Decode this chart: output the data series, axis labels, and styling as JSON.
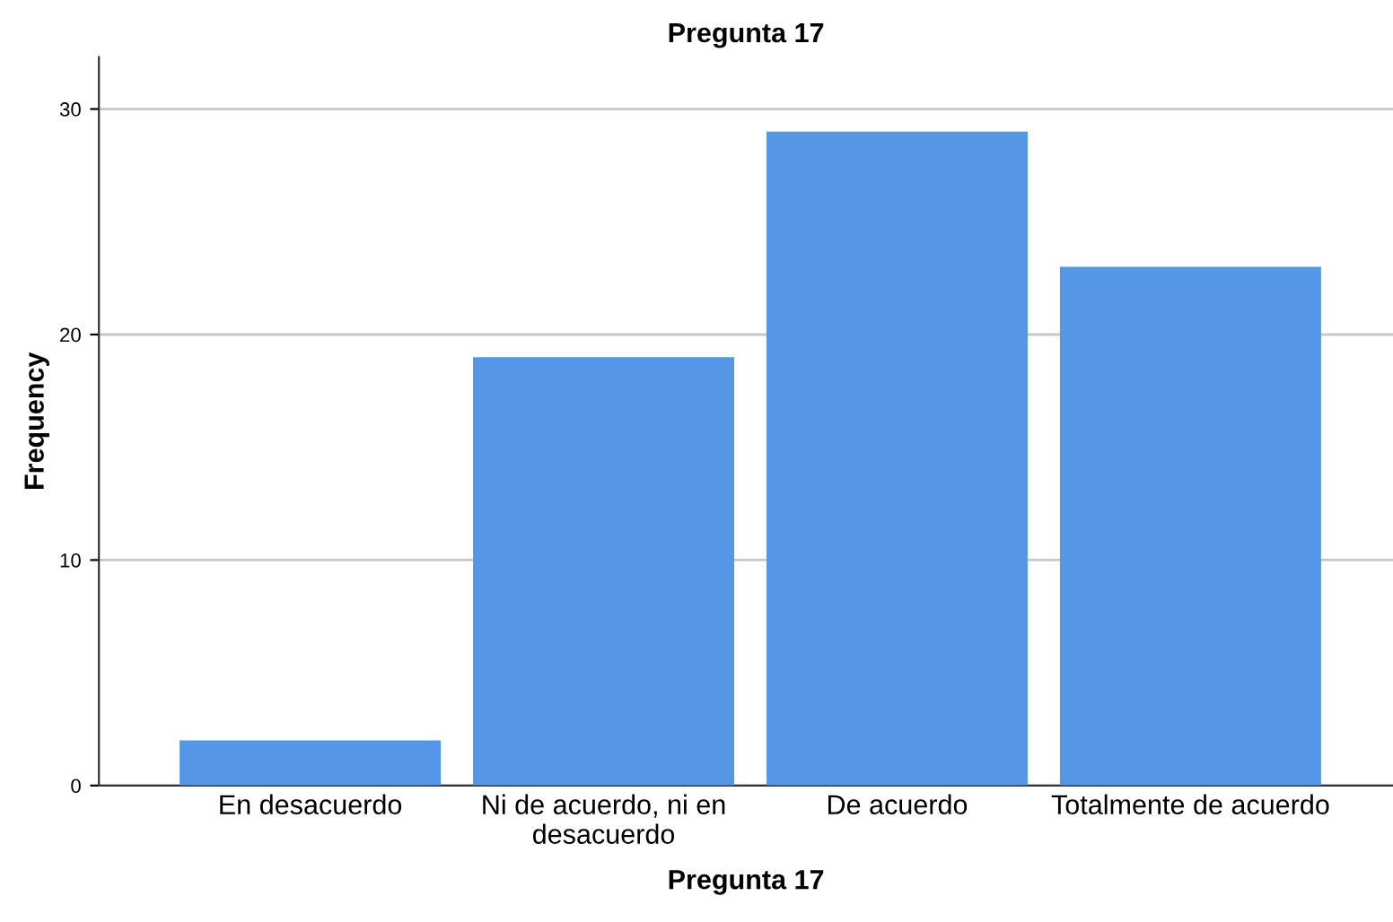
{
  "chart_data": {
    "type": "bar",
    "title": "Pregunta 17",
    "xlabel": "Pregunta 17",
    "ylabel": "Frequency",
    "categories": [
      "En desacuerdo",
      "Ni de acuerdo, ni en\ndesacuerdo",
      "De acuerdo",
      "Totalmente de acuerdo"
    ],
    "values": [
      2,
      19,
      29,
      23
    ],
    "color": "#5596e6",
    "ylim": [
      0,
      32.3
    ],
    "yticks": [
      0,
      10,
      20,
      30
    ],
    "grid": "y"
  }
}
